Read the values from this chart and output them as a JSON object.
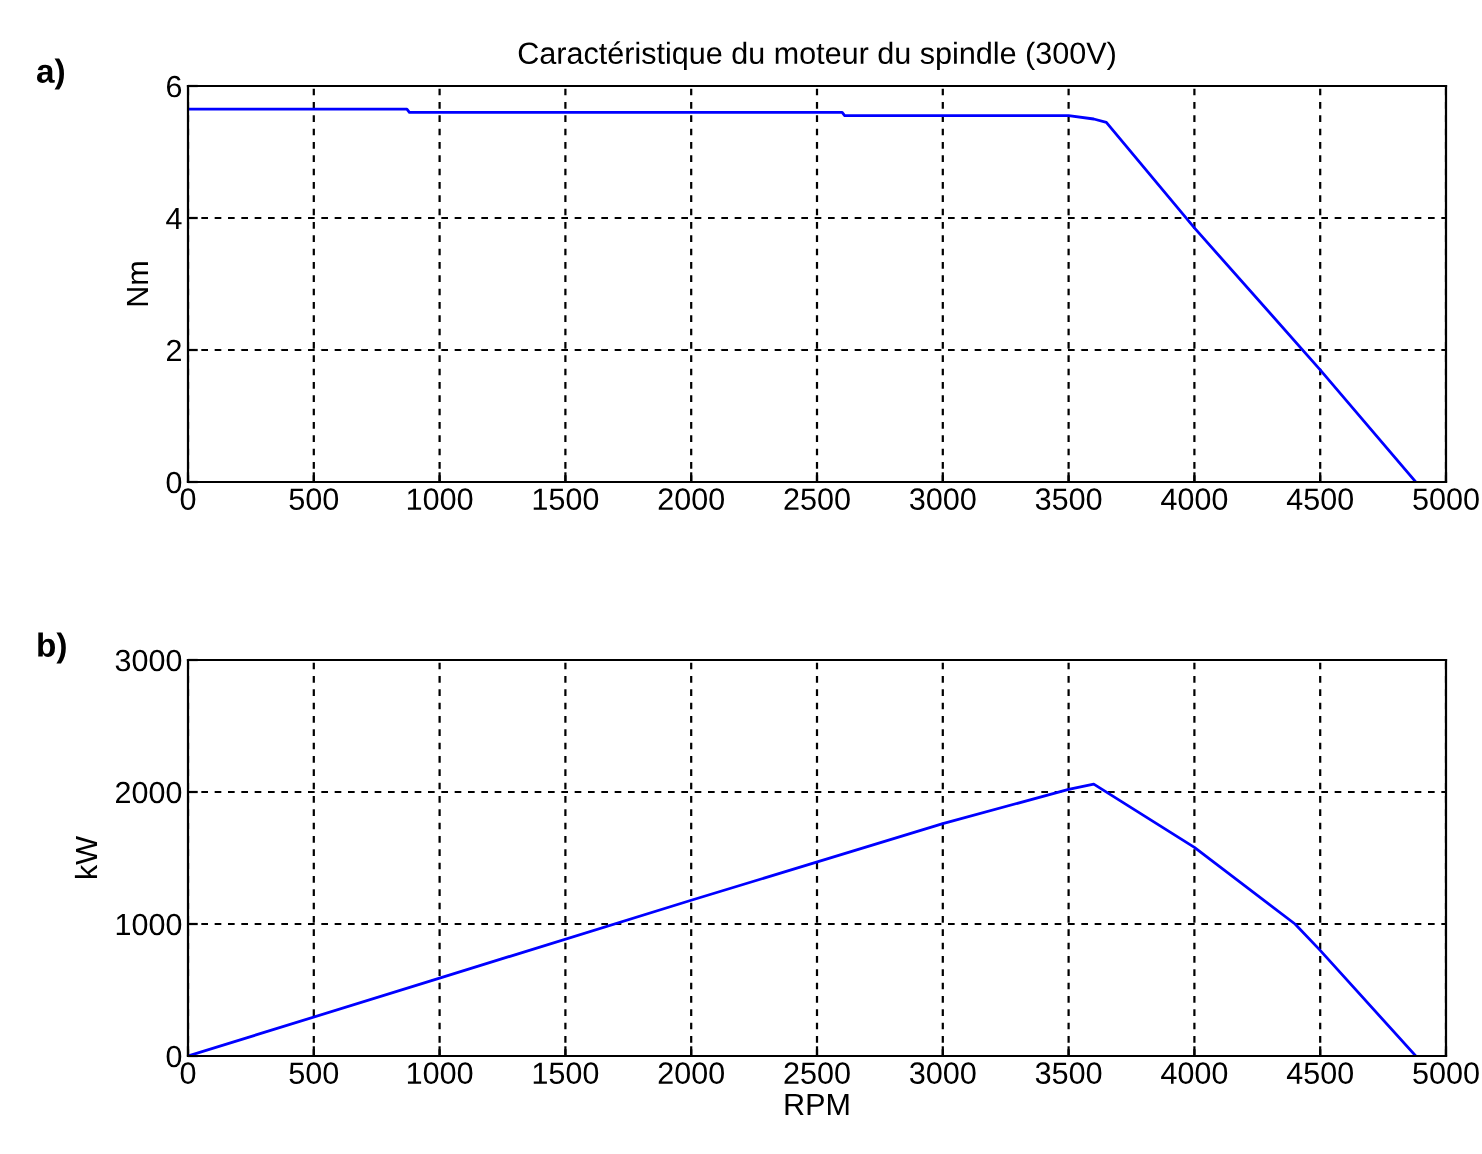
{
  "chart_data": [
    {
      "type": "line",
      "title": "Caractéristique du moteur du spindle (300V)",
      "ylabel": "Nm",
      "annotations": [
        "a)"
      ],
      "series": [
        {
          "color": "#0000ff",
          "x": [
            0,
            870,
            880,
            2600,
            2610,
            3500,
            3600,
            3650,
            4000,
            4500,
            4880
          ],
          "values": [
            5.65,
            5.65,
            5.6,
            5.6,
            5.55,
            5.55,
            5.5,
            5.45,
            3.85,
            1.7,
            0
          ]
        }
      ],
      "xlim": [
        0,
        5000
      ],
      "xticks": [
        0,
        500,
        1000,
        1500,
        2000,
        2500,
        3000,
        3500,
        4000,
        4500,
        5000
      ],
      "ylim": [
        0,
        6
      ],
      "yticks": [
        0,
        2,
        4,
        6
      ],
      "grid": true,
      "line_style": "solid"
    },
    {
      "type": "line",
      "xlabel": "RPM",
      "ylabel": "kW",
      "annotations": [
        "b)"
      ],
      "series": [
        {
          "color": "#0000ff",
          "x": [
            0,
            1000,
            2000,
            3000,
            3500,
            3600,
            4000,
            4400,
            4500,
            4880
          ],
          "values": [
            0,
            590,
            1180,
            1760,
            2020,
            2060,
            1580,
            1000,
            800,
            0
          ]
        }
      ],
      "xlim": [
        0,
        5000
      ],
      "xticks": [
        0,
        500,
        1000,
        1500,
        2000,
        2500,
        3000,
        3500,
        4000,
        4500,
        5000
      ],
      "ylim": [
        0,
        3000
      ],
      "yticks": [
        0,
        1000,
        2000,
        3000
      ],
      "grid": true,
      "line_style": "solid"
    }
  ]
}
